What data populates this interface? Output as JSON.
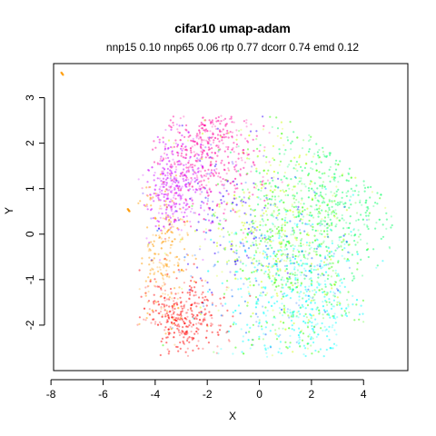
{
  "chart_data": {
    "type": "scatter",
    "title": "cifar10 umap-adam",
    "subtitle": "nnp15 0.10 nnp65 0.06 rtp 0.77 dcorr 0.74 emd 0.12",
    "xlabel": "X",
    "ylabel": "Y",
    "xlim": [
      -7.9,
      5.7
    ],
    "ylim": [
      -3.0,
      3.75
    ],
    "x_ticks": [
      -8,
      -6,
      -4,
      -2,
      0,
      2,
      4
    ],
    "y_ticks": [
      -2,
      -1,
      0,
      1,
      2,
      3
    ],
    "grid": false,
    "legend": "none",
    "main_cloud": {
      "shape": "blob",
      "center_approx": [
        0.4,
        0.0
      ],
      "x_range": [
        -4.7,
        5.1
      ],
      "y_range": [
        -2.7,
        2.6
      ]
    },
    "clusters": [
      {
        "class": 0,
        "color": "#ff0000",
        "center": [
          -3.0,
          -1.9
        ],
        "spread": [
          0.8,
          0.45
        ],
        "weight": 0.7
      },
      {
        "class": 1,
        "color": "#ff9900",
        "center": [
          -3.6,
          -0.5
        ],
        "spread": [
          0.5,
          0.9
        ],
        "weight": 0.5
      },
      {
        "class": 2,
        "color": "#ccff00",
        "center": [
          0.6,
          0.3
        ],
        "spread": [
          1.6,
          1.2
        ],
        "weight": 0.6
      },
      {
        "class": 3,
        "color": "#33ff00",
        "center": [
          1.4,
          -0.4
        ],
        "spread": [
          1.5,
          1.2
        ],
        "weight": 1.0
      },
      {
        "class": 4,
        "color": "#00ff66",
        "center": [
          2.6,
          0.6
        ],
        "spread": [
          1.4,
          1.1
        ],
        "weight": 1.0
      },
      {
        "class": 5,
        "color": "#00ffff",
        "center": [
          1.4,
          -1.5
        ],
        "spread": [
          1.4,
          0.9
        ],
        "weight": 0.9
      },
      {
        "class": 6,
        "color": "#0066ff",
        "center": [
          0.6,
          -0.8
        ],
        "spread": [
          1.5,
          1.0
        ],
        "weight": 0.35
      },
      {
        "class": 7,
        "color": "#3300ff",
        "center": [
          -1.6,
          0.6
        ],
        "spread": [
          1.2,
          0.9
        ],
        "weight": 0.25
      },
      {
        "class": 8,
        "color": "#cc00ff",
        "center": [
          -3.2,
          1.1
        ],
        "spread": [
          0.6,
          0.5
        ],
        "weight": 0.8
      },
      {
        "class": 9,
        "color": "#ff0099",
        "center": [
          -2.0,
          1.8
        ],
        "spread": [
          1.0,
          0.6
        ],
        "weight": 1.0
      }
    ],
    "outliers": [
      {
        "x": -7.6,
        "y": 3.55,
        "color": "#ff9900"
      },
      {
        "x": -5.05,
        "y": 0.55,
        "color": "#ff9900"
      }
    ]
  }
}
